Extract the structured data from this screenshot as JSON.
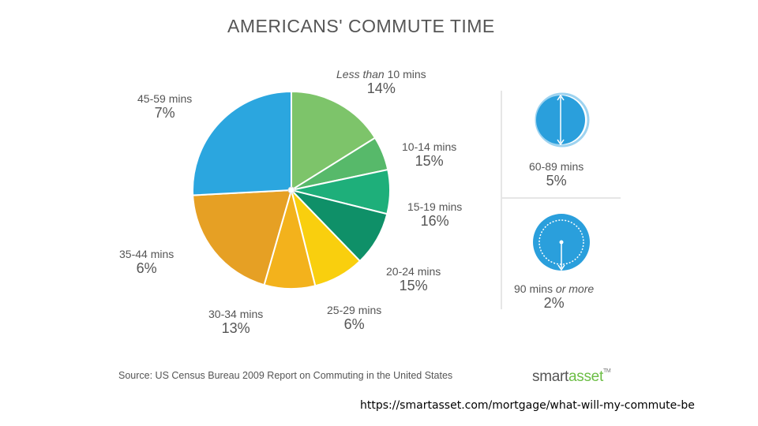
{
  "title": "AMERICANS' COMMUTE TIME",
  "chart_data": {
    "type": "pie",
    "title": "AMERICANS' COMMUTE TIME",
    "slices": [
      {
        "label_prefix": "Less than",
        "label": "10 mins",
        "display_value": "14%",
        "value": 14,
        "color": "#7dc46a"
      },
      {
        "label_prefix": "",
        "label": "10-14 mins",
        "display_value": "15%",
        "value": 15,
        "color": "#57b96a"
      },
      {
        "label_prefix": "",
        "label": "15-19 mins",
        "display_value": "16%",
        "value": 16,
        "color": "#1eaf7a"
      },
      {
        "label_prefix": "",
        "label": "20-24 mins",
        "display_value": "15%",
        "value": 15,
        "color": "#0f9068"
      },
      {
        "label_prefix": "",
        "label": "25-29 mins",
        "display_value": "6%",
        "value": 6,
        "color": "#f9cf0e"
      },
      {
        "label_prefix": "",
        "label": "30-34 mins",
        "display_value": "13%",
        "value": 13,
        "color": "#f3b21c"
      },
      {
        "label_prefix": "",
        "label": "35-44 mins",
        "display_value": "6%",
        "value": 6,
        "color": "#e6a024"
      },
      {
        "label_prefix": "",
        "label": "45-59 mins",
        "display_value": "7%",
        "value": 7,
        "color": "#2ba6df"
      }
    ],
    "slice_angles_deg": [
      58,
      20,
      26,
      32,
      30,
      30,
      71,
      93
    ],
    "side_items": [
      {
        "label": "60-89 mins",
        "label_suffix": "",
        "display_value": "5%",
        "value": 5,
        "color": "#2a9fdc"
      },
      {
        "label": "90 mins",
        "label_suffix": "or more",
        "display_value": "2%",
        "value": 2,
        "color": "#2a9fdc"
      }
    ]
  },
  "source": "Source: US Census Bureau 2009 Report on Commuting in the United States",
  "brand": {
    "part1": "smart",
    "part2": "asset",
    "tm": "TM"
  },
  "url": "https://smartasset.com/mortgage/what-will-my-commute-be"
}
